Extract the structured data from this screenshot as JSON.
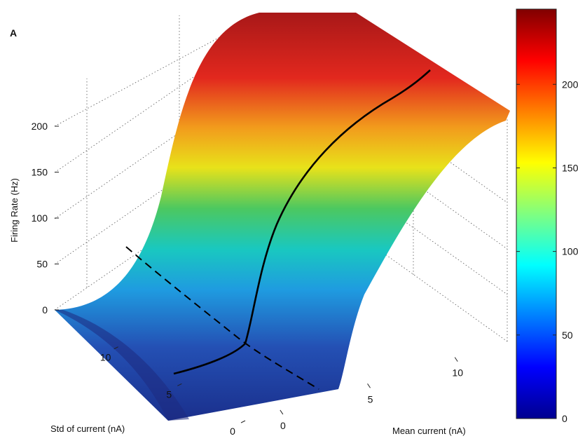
{
  "panel_label": "A",
  "chart_data": {
    "type": "surface",
    "title": "",
    "xlabel": "Mean current (nA)",
    "ylabel": "Std of current (nA)",
    "zlabel": "Firing Rate (Hz)",
    "x_ticks": [
      "0",
      "5",
      "10"
    ],
    "y_ticks": [
      "0",
      "5",
      "10"
    ],
    "z_ticks": [
      "0",
      "50",
      "100",
      "150",
      "200"
    ],
    "xlim": [
      -2,
      13
    ],
    "ylim": [
      0,
      15
    ],
    "zlim": [
      0,
      250
    ],
    "grid": true,
    "colormap": "jet",
    "colorbar": {
      "ticks": [
        "0",
        "50",
        "100",
        "150",
        "200"
      ],
      "range": [
        0,
        245
      ],
      "colors": [
        "#00008f",
        "#0000ff",
        "#00ffff",
        "#ffff00",
        "#ff0000",
        "#800000"
      ]
    },
    "surface_profile_mean_current_nA": [
      -2,
      -1,
      0,
      1,
      2,
      3,
      4,
      5,
      6,
      7,
      8,
      9,
      10,
      11,
      12,
      13
    ],
    "surface_profile_rate_Hz": [
      0,
      0,
      0,
      3,
      8,
      25,
      70,
      125,
      160,
      185,
      200,
      212,
      222,
      230,
      236,
      240
    ],
    "curves": [
      {
        "style": "solid",
        "color": "#000000",
        "description_std_nA": 5
      },
      {
        "style": "dashed",
        "color": "#000000",
        "description_std_nA": 0
      }
    ]
  }
}
